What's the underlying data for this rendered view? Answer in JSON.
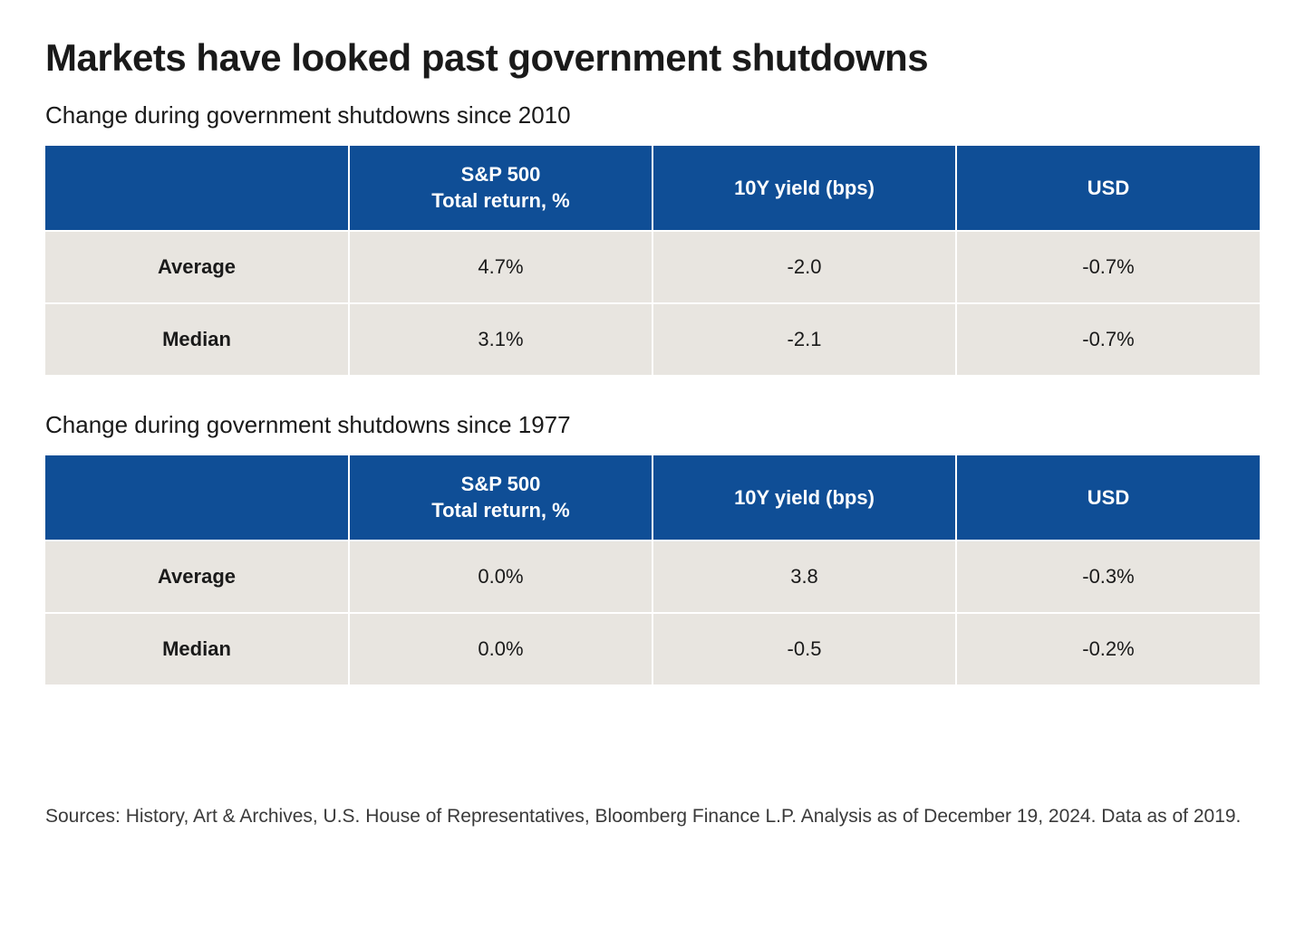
{
  "title": "Markets have looked past government shutdowns",
  "styling": {
    "header_bg_color": "#0f4e96",
    "header_text_color": "#ffffff",
    "row_bg_color": "#e8e5e0",
    "row_text_color": "#1a1a1a",
    "title_fontsize": 42,
    "subtitle_fontsize": 26,
    "cell_fontsize": 22,
    "sources_fontsize": 21,
    "border_color": "#ffffff",
    "background_color": "#ffffff"
  },
  "table1": {
    "subtitle": "Change during government shutdowns since 2010",
    "columns": [
      "",
      "S&P 500\nTotal return, %",
      "10Y yield (bps)",
      "USD"
    ],
    "col0_header": "",
    "col1_header_line1": "S&P 500",
    "col1_header_line2": "Total return, %",
    "col2_header": "10Y yield (bps)",
    "col3_header": "USD",
    "rows": [
      {
        "label": "Average",
        "sp500": "4.7%",
        "yield": "-2.0",
        "usd": "-0.7%"
      },
      {
        "label": "Median",
        "sp500": "3.1%",
        "yield": "-2.1",
        "usd": "-0.7%"
      }
    ]
  },
  "table2": {
    "subtitle": "Change during government shutdowns since 1977",
    "columns": [
      "",
      "S&P 500\nTotal return, %",
      "10Y yield (bps)",
      "USD"
    ],
    "col0_header": "",
    "col1_header_line1": "S&P 500",
    "col1_header_line2": "Total return, %",
    "col2_header": "10Y yield (bps)",
    "col3_header": "USD",
    "rows": [
      {
        "label": "Average",
        "sp500": "0.0%",
        "yield": "3.8",
        "usd": "-0.3%"
      },
      {
        "label": "Median",
        "sp500": "0.0%",
        "yield": "-0.5",
        "usd": "-0.2%"
      }
    ]
  },
  "sources": "Sources: History, Art & Archives, U.S. House of Representatives, Bloomberg Finance L.P. Analysis as of December 19, 2024. Data as of 2019."
}
